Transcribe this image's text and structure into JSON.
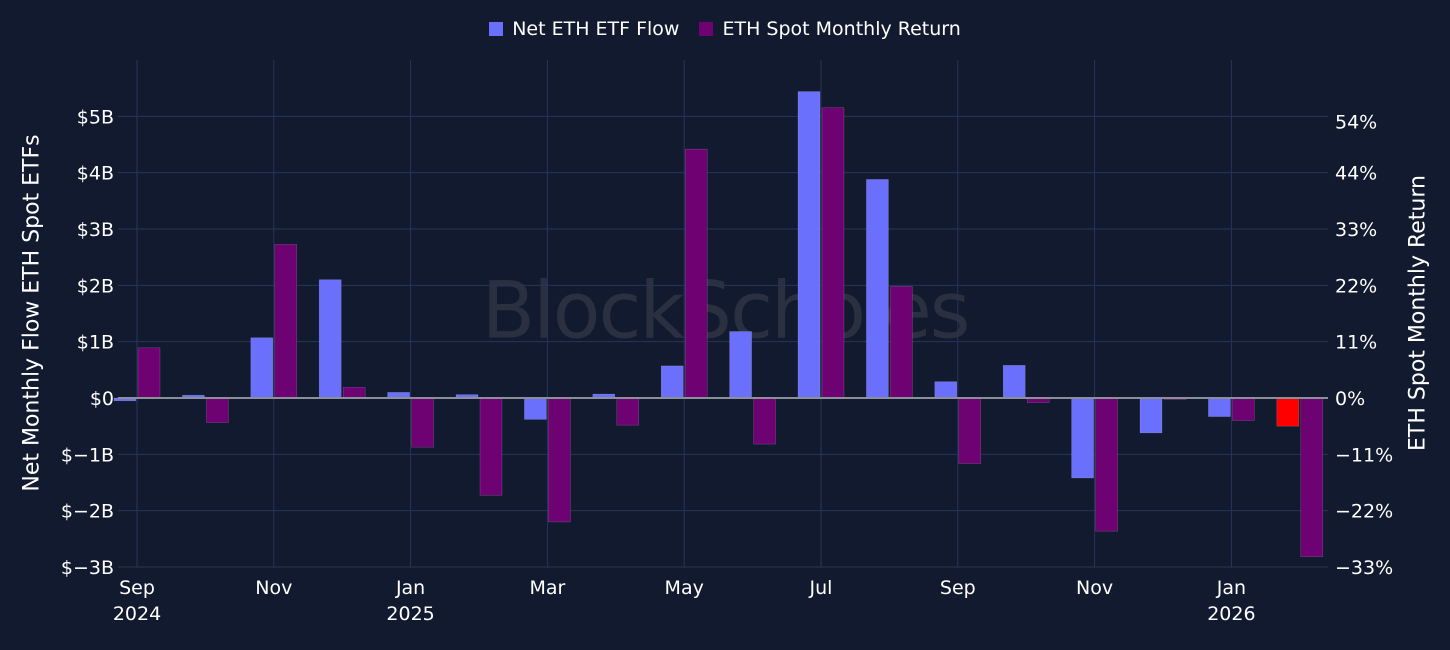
{
  "colors": {
    "background": "#111a2e",
    "grid": "#27355a",
    "flow": "#6a6ffc",
    "flow_highlight": "#ff0000",
    "ret": "#6f0273",
    "watermark": "#2a3040"
  },
  "watermark": "BlockScholes",
  "chart_data": {
    "type": "bar",
    "title": "",
    "legend_placement": "top-center",
    "grid": true,
    "x": [
      "2024-09",
      "2024-10",
      "2024-11",
      "2024-12",
      "2025-01",
      "2025-02",
      "2025-03",
      "2025-04",
      "2025-05",
      "2025-06",
      "2025-07",
      "2025-08",
      "2025-09",
      "2025-10",
      "2025-11",
      "2025-12",
      "2026-01",
      "2026-02"
    ],
    "x_ticks": [
      {
        "x": "2024-09",
        "label": "Sep",
        "sublabel": "2024"
      },
      {
        "x": "2024-11",
        "label": "Nov",
        "sublabel": ""
      },
      {
        "x": "2025-01",
        "label": "Jan",
        "sublabel": "2025"
      },
      {
        "x": "2025-03",
        "label": "Mar",
        "sublabel": ""
      },
      {
        "x": "2025-05",
        "label": "May",
        "sublabel": ""
      },
      {
        "x": "2025-07",
        "label": "Jul",
        "sublabel": ""
      },
      {
        "x": "2025-09",
        "label": "Sep",
        "sublabel": ""
      },
      {
        "x": "2025-11",
        "label": "Nov",
        "sublabel": ""
      },
      {
        "x": "2026-01",
        "label": "Jan",
        "sublabel": "2026"
      }
    ],
    "series": [
      {
        "name": "Net ETH ETF Flow",
        "axis": "left",
        "unit": "B USD",
        "values": [
          -0.05,
          0.05,
          1.07,
          2.1,
          0.1,
          0.06,
          -0.38,
          0.07,
          0.57,
          1.18,
          5.44,
          3.88,
          0.29,
          0.58,
          -1.42,
          -0.62,
          -0.33,
          -0.5
        ],
        "highlight_index": 17
      },
      {
        "name": "ETH Spot Monthly Return",
        "axis": "right",
        "unit": "%",
        "values": [
          9.8,
          -4.8,
          30.0,
          2.1,
          -9.6,
          -19.0,
          -24.2,
          -5.3,
          48.6,
          -9.0,
          56.7,
          21.8,
          -12.8,
          -0.9,
          -26.0,
          -0.3,
          -4.4,
          -31.0
        ]
      }
    ],
    "y_left": {
      "label": "Net Monthly Flow ETH Spot ETFs",
      "range": [
        -3,
        6
      ],
      "ticks": [
        -3,
        -2,
        -1,
        0,
        1,
        2,
        3,
        4,
        5
      ],
      "tick_labels": [
        "$−3B",
        "$−2B",
        "$−1B",
        "$0",
        "$1B",
        "$2B",
        "$3B",
        "$4B",
        "$5B"
      ]
    },
    "y_right": {
      "label": "ETH Spot Monthly Return",
      "range": [
        -33,
        66
      ],
      "ticks": [
        -33,
        -22,
        -11,
        0,
        11,
        22,
        33,
        44,
        54
      ],
      "tick_labels": [
        "−33%",
        "−22%",
        "−11%",
        "0%",
        "11%",
        "22%",
        "33%",
        "44%",
        "54%"
      ]
    }
  }
}
